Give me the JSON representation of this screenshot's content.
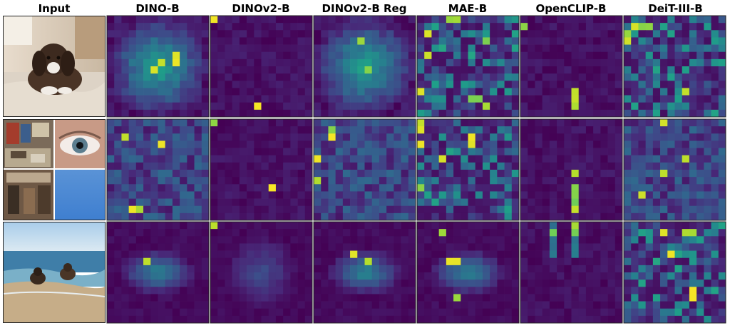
{
  "figure": {
    "columns": [
      "Input",
      "DINO-B",
      "DINOv2-B",
      "DINOv2-B Reg",
      "MAE-B",
      "OpenCLIP-B",
      "DeiT-III-B"
    ],
    "rows": [
      {
        "input": {
          "subject": "puppy lying on a bed",
          "kind": "single-photo"
        },
        "maps": [
          {
            "model": "DINO-B",
            "pattern": "blob-object",
            "hot": [
              [
                6,
                7
              ],
              [
                5,
                9
              ],
              [
                7,
                6
              ],
              [
                6,
                9
              ]
            ]
          },
          {
            "model": "DINOv2-B",
            "pattern": "sparse",
            "hot": [
              [
                0,
                0
              ],
              [
                12,
                6
              ]
            ]
          },
          {
            "model": "DINOv2-B Reg",
            "pattern": "blob-object",
            "hot": [
              [
                7,
                7
              ],
              [
                3,
                6
              ]
            ]
          },
          {
            "model": "MAE-B",
            "pattern": "scattered-bright",
            "hot": [
              [
                0,
                4
              ],
              [
                0,
                5
              ],
              [
                3,
                9
              ],
              [
                10,
                0
              ],
              [
                11,
                7
              ],
              [
                11,
                8
              ],
              [
                12,
                9
              ],
              [
                2,
                1
              ],
              [
                5,
                1
              ]
            ]
          },
          {
            "model": "OpenCLIP-B",
            "pattern": "sparse",
            "hot": [
              [
                1,
                0
              ],
              [
                10,
                7
              ],
              [
                11,
                7
              ],
              [
                12,
                7
              ]
            ]
          },
          {
            "model": "DeiT-III-B",
            "pattern": "scattered-bright",
            "hot": [
              [
                1,
                1
              ],
              [
                1,
                2
              ],
              [
                2,
                0
              ],
              [
                3,
                0
              ],
              [
                10,
                8
              ],
              [
                1,
                3
              ]
            ]
          }
        ]
      },
      {
        "input": {
          "subject": "2x2 collage: bookshop, eye close-up, antique shop, blue gradient",
          "kind": "collage"
        },
        "maps": [
          {
            "model": "DINO-B",
            "pattern": "diffuse",
            "hot": [
              [
                12,
                3
              ],
              [
                12,
                4
              ],
              [
                3,
                7
              ],
              [
                2,
                2
              ]
            ]
          },
          {
            "model": "DINOv2-B",
            "pattern": "sparse",
            "hot": [
              [
                0,
                0
              ],
              [
                9,
                8
              ]
            ]
          },
          {
            "model": "DINOv2-B Reg",
            "pattern": "diffuse",
            "hot": [
              [
                8,
                0
              ],
              [
                1,
                2
              ],
              [
                2,
                2
              ],
              [
                5,
                0
              ]
            ]
          },
          {
            "model": "MAE-B",
            "pattern": "scattered-bright",
            "hot": [
              [
                0,
                0
              ],
              [
                1,
                0
              ],
              [
                3,
                0
              ],
              [
                9,
                0
              ],
              [
                2,
                7
              ],
              [
                3,
                7
              ],
              [
                5,
                3
              ]
            ]
          },
          {
            "model": "OpenCLIP-B",
            "pattern": "sparse",
            "hot": [
              [
                9,
                7
              ],
              [
                10,
                7
              ],
              [
                11,
                7
              ],
              [
                12,
                7
              ],
              [
                7,
                7
              ]
            ]
          },
          {
            "model": "DeiT-III-B",
            "pattern": "diffuse",
            "hot": [
              [
                0,
                5
              ],
              [
                5,
                8
              ],
              [
                7,
                5
              ],
              [
                10,
                2
              ]
            ]
          }
        ]
      },
      {
        "input": {
          "subject": "two puppies on a beach",
          "kind": "single-photo"
        },
        "maps": [
          {
            "model": "DINO-B",
            "pattern": "blob-center",
            "hot": [
              [
                5,
                5
              ]
            ]
          },
          {
            "model": "DINOv2-B",
            "pattern": "faint-center",
            "hot": [
              [
                0,
                0
              ]
            ]
          },
          {
            "model": "DINOv2-B Reg",
            "pattern": "blob-center",
            "hot": [
              [
                4,
                5
              ],
              [
                5,
                7
              ]
            ]
          },
          {
            "model": "MAE-B",
            "pattern": "blob-center",
            "hot": [
              [
                5,
                5
              ],
              [
                5,
                4
              ],
              [
                1,
                3
              ],
              [
                10,
                5
              ]
            ]
          },
          {
            "model": "OpenCLIP-B",
            "pattern": "top-stripes",
            "hot": [
              [
                0,
                7
              ],
              [
                1,
                7
              ],
              [
                1,
                4
              ]
            ]
          },
          {
            "model": "DeiT-III-B",
            "pattern": "scattered-bright",
            "hot": [
              [
                1,
                8
              ],
              [
                1,
                9
              ],
              [
                4,
                6
              ],
              [
                9,
                9
              ],
              [
                10,
                9
              ],
              [
                1,
                5
              ]
            ]
          }
        ]
      }
    ]
  }
}
